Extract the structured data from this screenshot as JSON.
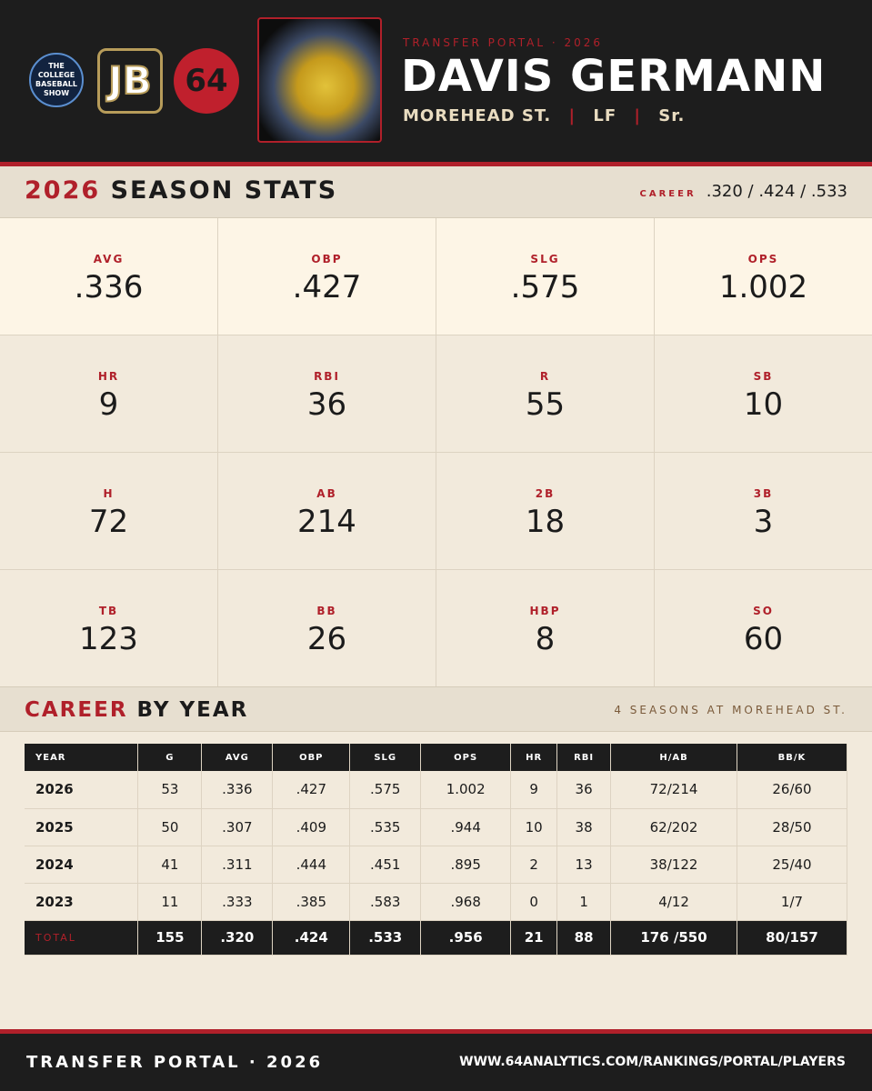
{
  "header": {
    "logo_text": [
      "THE",
      "COLLEGE",
      "BASEBALL",
      "SHOW"
    ],
    "jb_logo": "JB",
    "logo_64": "64",
    "eyebrow": "TRANSFER PORTAL · 2026",
    "player_name": "DAVIS GERMANN",
    "school": "MOREHEAD ST.",
    "position": "LF",
    "class": "Sr."
  },
  "season": {
    "year": "2026",
    "title": "SEASON STATS",
    "career_label": "CAREER",
    "career_line": ".320 / .424 / .533",
    "stats": [
      {
        "label": "AVG",
        "value": ".336"
      },
      {
        "label": "OBP",
        "value": ".427"
      },
      {
        "label": "SLG",
        "value": ".575"
      },
      {
        "label": "OPS",
        "value": "1.002"
      },
      {
        "label": "HR",
        "value": "9"
      },
      {
        "label": "RBI",
        "value": "36"
      },
      {
        "label": "R",
        "value": "55"
      },
      {
        "label": "SB",
        "value": "10"
      },
      {
        "label": "H",
        "value": "72"
      },
      {
        "label": "AB",
        "value": "214"
      },
      {
        "label": "2B",
        "value": "18"
      },
      {
        "label": "3B",
        "value": "3"
      },
      {
        "label": "TB",
        "value": "123"
      },
      {
        "label": "BB",
        "value": "26"
      },
      {
        "label": "HBP",
        "value": "8"
      },
      {
        "label": "SO",
        "value": "60"
      }
    ]
  },
  "career": {
    "title_accent": "CAREER",
    "title": "BY YEAR",
    "note": "4 SEASONS AT MOREHEAD ST.",
    "columns": [
      "YEAR",
      "G",
      "AVG",
      "OBP",
      "SLG",
      "OPS",
      "HR",
      "RBI",
      "H/AB",
      "BB/K"
    ],
    "rows": [
      [
        "2026",
        "53",
        ".336",
        ".427",
        ".575",
        "1.002",
        "9",
        "36",
        "72/214",
        "26/60"
      ],
      [
        "2025",
        "50",
        ".307",
        ".409",
        ".535",
        ".944",
        "10",
        "38",
        "62/202",
        "28/50"
      ],
      [
        "2024",
        "41",
        ".311",
        ".444",
        ".451",
        ".895",
        "2",
        "13",
        "38/122",
        "25/40"
      ],
      [
        "2023",
        "11",
        ".333",
        ".385",
        ".583",
        ".968",
        "0",
        "1",
        "4/12",
        "1/7"
      ]
    ],
    "total": [
      "TOTAL",
      "155",
      ".320",
      ".424",
      ".533",
      ".956",
      "21",
      "88",
      "176 /550",
      "80/157"
    ]
  },
  "footer": {
    "left": "TRANSFER PORTAL · 2026",
    "right": "WWW.64ANALYTICS.COM/RANKINGS/PORTAL/PLAYERS"
  }
}
